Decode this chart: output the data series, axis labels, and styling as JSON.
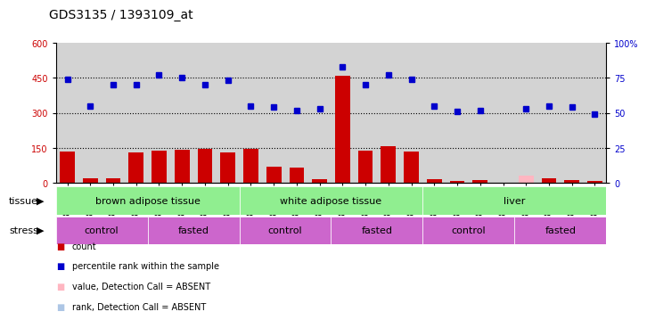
{
  "title": "GDS3135 / 1393109_at",
  "samples": [
    "GSM184414",
    "GSM184415",
    "GSM184416",
    "GSM184417",
    "GSM184418",
    "GSM184419",
    "GSM184420",
    "GSM184421",
    "GSM184422",
    "GSM184423",
    "GSM184424",
    "GSM184425",
    "GSM184426",
    "GSM184427",
    "GSM184428",
    "GSM184429",
    "GSM184430",
    "GSM184431",
    "GSM184432",
    "GSM184433",
    "GSM184434",
    "GSM184435",
    "GSM184436",
    "GSM184437"
  ],
  "counts": [
    135,
    22,
    20,
    130,
    140,
    143,
    145,
    130,
    145,
    68,
    65,
    18,
    460,
    140,
    158,
    136,
    15,
    8,
    12,
    2,
    30,
    20,
    13,
    8
  ],
  "counts_absent": [
    false,
    false,
    false,
    false,
    false,
    false,
    false,
    false,
    false,
    false,
    false,
    false,
    false,
    false,
    false,
    false,
    false,
    false,
    false,
    false,
    true,
    false,
    false,
    false
  ],
  "ranks_pct": [
    74,
    55,
    70,
    70,
    77,
    75,
    70,
    73,
    55,
    54,
    52,
    53,
    83,
    70,
    77,
    74,
    55,
    51,
    52,
    null,
    53,
    55,
    54,
    49
  ],
  "ranks_absent": [
    false,
    false,
    false,
    false,
    false,
    false,
    false,
    false,
    false,
    false,
    false,
    false,
    false,
    false,
    false,
    false,
    false,
    false,
    false,
    true,
    false,
    false,
    false,
    false
  ],
  "tissue_groups": [
    {
      "label": "brown adipose tissue",
      "start": 0,
      "end": 7
    },
    {
      "label": "white adipose tissue",
      "start": 8,
      "end": 15
    },
    {
      "label": "liver",
      "start": 16,
      "end": 23
    }
  ],
  "stress_groups": [
    {
      "label": "control",
      "start": 0,
      "end": 3
    },
    {
      "label": "fasted",
      "start": 4,
      "end": 7
    },
    {
      "label": "control",
      "start": 8,
      "end": 11
    },
    {
      "label": "fasted",
      "start": 12,
      "end": 15
    },
    {
      "label": "control",
      "start": 16,
      "end": 19
    },
    {
      "label": "fasted",
      "start": 20,
      "end": 23
    }
  ],
  "left_ylim": [
    0,
    600
  ],
  "left_yticks": [
    0,
    150,
    300,
    450,
    600
  ],
  "right_yticks": [
    0,
    25,
    50,
    75,
    100
  ],
  "bar_color": "#CC0000",
  "bar_absent_color": "#FFB6C1",
  "dot_color": "#0000CC",
  "dot_absent_color": "#ADC6E5",
  "tissue_color": "#90EE90",
  "stress_color": "#CC66CC",
  "bg_color": "#D3D3D3",
  "title_fontsize": 10,
  "tick_fontsize": 7,
  "label_fontsize": 8
}
